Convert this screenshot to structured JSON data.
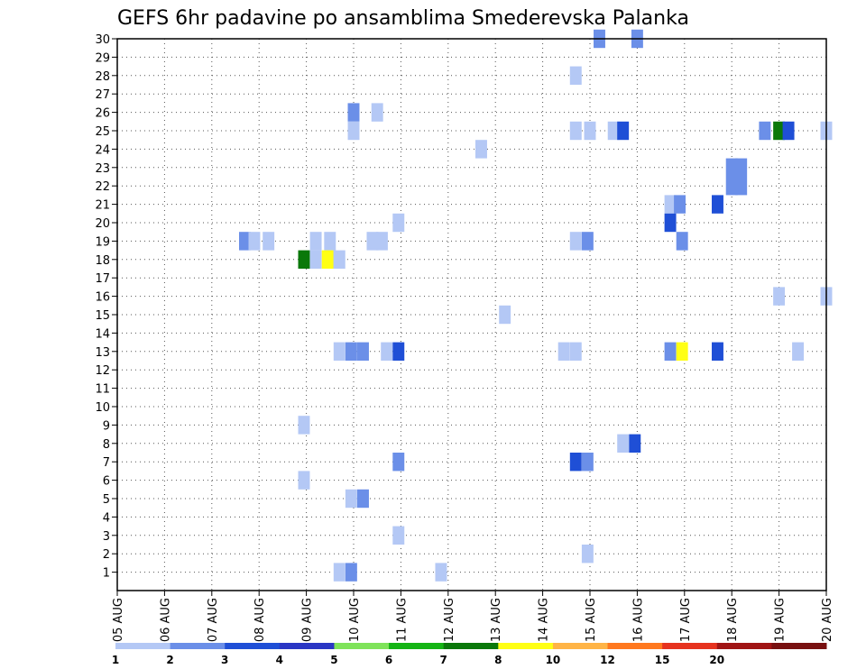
{
  "chart_data": {
    "type": "heatmap",
    "title": "GEFS 6hr padavine po ansamblima Smederevska Palanka",
    "xlabel": "",
    "ylabel": "",
    "x_ticks": [
      "05 AUG",
      "06 AUG",
      "07 AUG",
      "08 AUG",
      "09 AUG",
      "10 AUG",
      "11 AUG",
      "12 AUG",
      "13 AUG",
      "14 AUG",
      "15 AUG",
      "16 AUG",
      "17 AUG",
      "18 AUG",
      "19 AUG",
      "20 AUG"
    ],
    "x_range_days": [
      0,
      15
    ],
    "y_ticks": [
      1,
      2,
      3,
      4,
      5,
      6,
      7,
      8,
      9,
      10,
      11,
      12,
      13,
      14,
      15,
      16,
      17,
      18,
      19,
      20,
      21,
      22,
      23,
      24,
      25,
      26,
      27,
      28,
      29,
      30
    ],
    "y_range": [
      0,
      30
    ],
    "grid": true,
    "colorbar": {
      "labels": [
        "1",
        "2",
        "3",
        "4",
        "5",
        "6",
        "7",
        "8",
        "10",
        "12",
        "15",
        "20"
      ],
      "colors": [
        "#b4c8f5",
        "#6b8fe8",
        "#1f4fd6",
        "#2a36c4",
        "#7fe35a",
        "#14b414",
        "#0a780a",
        "#ffff14",
        "#ffb446",
        "#ff781e",
        "#e6321e",
        "#a01414",
        "#781010"
      ]
    },
    "cells": [
      {
        "day": 10.2,
        "member": 30,
        "color": "#6b8fe8"
      },
      {
        "day": 11.0,
        "member": 30,
        "color": "#6b8fe8"
      },
      {
        "day": 9.7,
        "member": 28,
        "color": "#b4c8f5"
      },
      {
        "day": 5.0,
        "member": 26,
        "color": "#6b8fe8"
      },
      {
        "day": 5.5,
        "member": 26,
        "color": "#b4c8f5"
      },
      {
        "day": 5.0,
        "member": 25,
        "color": "#b4c8f5"
      },
      {
        "day": 9.7,
        "member": 25,
        "color": "#b4c8f5"
      },
      {
        "day": 10.0,
        "member": 25,
        "color": "#b4c8f5"
      },
      {
        "day": 10.5,
        "member": 25,
        "color": "#b4c8f5"
      },
      {
        "day": 10.7,
        "member": 25,
        "color": "#1f4fd6"
      },
      {
        "day": 13.7,
        "member": 25,
        "color": "#6b8fe8"
      },
      {
        "day": 14.0,
        "member": 25,
        "color": "#0a780a"
      },
      {
        "day": 14.2,
        "member": 25,
        "color": "#1f4fd6"
      },
      {
        "day": 15.0,
        "member": 25,
        "color": "#b4c8f5"
      },
      {
        "day": 7.7,
        "member": 24,
        "color": "#b4c8f5"
      },
      {
        "day": 13.0,
        "member": 23,
        "color": "#6b8fe8"
      },
      {
        "day": 13.2,
        "member": 23,
        "color": "#6b8fe8"
      },
      {
        "day": 13.0,
        "member": 22,
        "color": "#6b8fe8"
      },
      {
        "day": 13.2,
        "member": 22,
        "color": "#6b8fe8"
      },
      {
        "day": 11.7,
        "member": 21,
        "color": "#b4c8f5"
      },
      {
        "day": 11.9,
        "member": 21,
        "color": "#6b8fe8"
      },
      {
        "day": 12.7,
        "member": 21,
        "color": "#1f4fd6"
      },
      {
        "day": 11.7,
        "member": 20,
        "color": "#1f4fd6"
      },
      {
        "day": 5.95,
        "member": 20,
        "color": "#b4c8f5"
      },
      {
        "day": 2.7,
        "member": 19,
        "color": "#6b8fe8"
      },
      {
        "day": 2.9,
        "member": 19,
        "color": "#b4c8f5"
      },
      {
        "day": 3.2,
        "member": 19,
        "color": "#b4c8f5"
      },
      {
        "day": 4.2,
        "member": 19,
        "color": "#b4c8f5"
      },
      {
        "day": 4.5,
        "member": 19,
        "color": "#b4c8f5"
      },
      {
        "day": 4.2,
        "member": 18,
        "color": "#b4c8f5"
      },
      {
        "day": 4.5,
        "member": 18,
        "color": "#b4c8f5"
      },
      {
        "day": 5.4,
        "member": 19,
        "color": "#b4c8f5"
      },
      {
        "day": 5.6,
        "member": 19,
        "color": "#b4c8f5"
      },
      {
        "day": 9.7,
        "member": 19,
        "color": "#b4c8f5"
      },
      {
        "day": 9.95,
        "member": 19,
        "color": "#6b8fe8"
      },
      {
        "day": 11.95,
        "member": 19,
        "color": "#6b8fe8"
      },
      {
        "day": 3.95,
        "member": 18,
        "color": "#0a780a"
      },
      {
        "day": 4.45,
        "member": 18,
        "color": "#ffff14"
      },
      {
        "day": 4.7,
        "member": 18,
        "color": "#b4c8f5"
      },
      {
        "day": 14.0,
        "member": 16,
        "color": "#b4c8f5"
      },
      {
        "day": 15.0,
        "member": 16,
        "color": "#b4c8f5"
      },
      {
        "day": 8.2,
        "member": 15,
        "color": "#b4c8f5"
      },
      {
        "day": 4.7,
        "member": 13,
        "color": "#b4c8f5"
      },
      {
        "day": 4.95,
        "member": 13,
        "color": "#6b8fe8"
      },
      {
        "day": 5.2,
        "member": 13,
        "color": "#6b8fe8"
      },
      {
        "day": 5.7,
        "member": 13,
        "color": "#b4c8f5"
      },
      {
        "day": 5.95,
        "member": 13,
        "color": "#1f4fd6"
      },
      {
        "day": 9.45,
        "member": 13,
        "color": "#b4c8f5"
      },
      {
        "day": 9.7,
        "member": 13,
        "color": "#b4c8f5"
      },
      {
        "day": 11.7,
        "member": 13,
        "color": "#6b8fe8"
      },
      {
        "day": 11.95,
        "member": 13,
        "color": "#ffff14"
      },
      {
        "day": 12.7,
        "member": 13,
        "color": "#1f4fd6"
      },
      {
        "day": 14.4,
        "member": 13,
        "color": "#b4c8f5"
      },
      {
        "day": 3.95,
        "member": 9,
        "color": "#b4c8f5"
      },
      {
        "day": 10.7,
        "member": 8,
        "color": "#b4c8f5"
      },
      {
        "day": 10.95,
        "member": 8,
        "color": "#1f4fd6"
      },
      {
        "day": 5.95,
        "member": 7,
        "color": "#6b8fe8"
      },
      {
        "day": 9.7,
        "member": 7,
        "color": "#1f4fd6"
      },
      {
        "day": 9.95,
        "member": 7,
        "color": "#6b8fe8"
      },
      {
        "day": 3.95,
        "member": 6,
        "color": "#b4c8f5"
      },
      {
        "day": 4.95,
        "member": 5,
        "color": "#b4c8f5"
      },
      {
        "day": 5.2,
        "member": 5,
        "color": "#6b8fe8"
      },
      {
        "day": 5.95,
        "member": 3,
        "color": "#b4c8f5"
      },
      {
        "day": 9.95,
        "member": 2,
        "color": "#b4c8f5"
      },
      {
        "day": 4.7,
        "member": 1,
        "color": "#b4c8f5"
      },
      {
        "day": 4.95,
        "member": 1,
        "color": "#6b8fe8"
      },
      {
        "day": 6.85,
        "member": 1,
        "color": "#b4c8f5"
      }
    ]
  }
}
